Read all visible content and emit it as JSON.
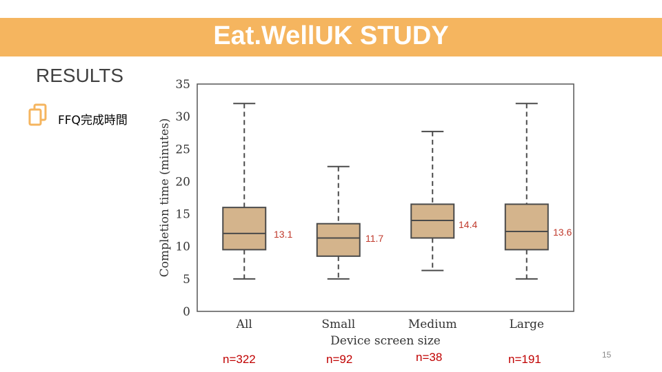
{
  "header": {
    "title": "Eat.WellUK STUDY"
  },
  "section": {
    "title": "RESULTS",
    "bullet": "FFQ完成時間",
    "bullet_icon": "copy-icon"
  },
  "page_number": "15",
  "colors": {
    "banner": "#f5b55f",
    "box_fill": "#d4b48c",
    "box_stroke": "#4a4a4a",
    "annotation": "#c0392b",
    "counts": "#c00000"
  },
  "chart_data": {
    "type": "box",
    "ylabel": "Completion time (minutes)",
    "xlabel": "Device screen size",
    "ylim": [
      0,
      35
    ],
    "yticks": [
      "0",
      "5",
      "10",
      "15",
      "20",
      "25",
      "30",
      "35"
    ],
    "categories": [
      "All",
      "Small",
      "Medium",
      "Large"
    ],
    "boxes": [
      {
        "min": 5,
        "q1": 9.5,
        "median": 12,
        "q3": 16,
        "max": 32
      },
      {
        "min": 5,
        "q1": 8.5,
        "median": 11.3,
        "q3": 13.5,
        "max": 22.3
      },
      {
        "min": 6.3,
        "q1": 11.3,
        "median": 14,
        "q3": 16.5,
        "max": 27.7
      },
      {
        "min": 5,
        "q1": 9.5,
        "median": 12.3,
        "q3": 16.5,
        "max": 32
      }
    ],
    "annotations": [
      "13.1",
      "11.7",
      "14.4",
      "13.6"
    ],
    "counts": [
      "n=322",
      "n=92",
      "n=38",
      "n=191"
    ]
  }
}
